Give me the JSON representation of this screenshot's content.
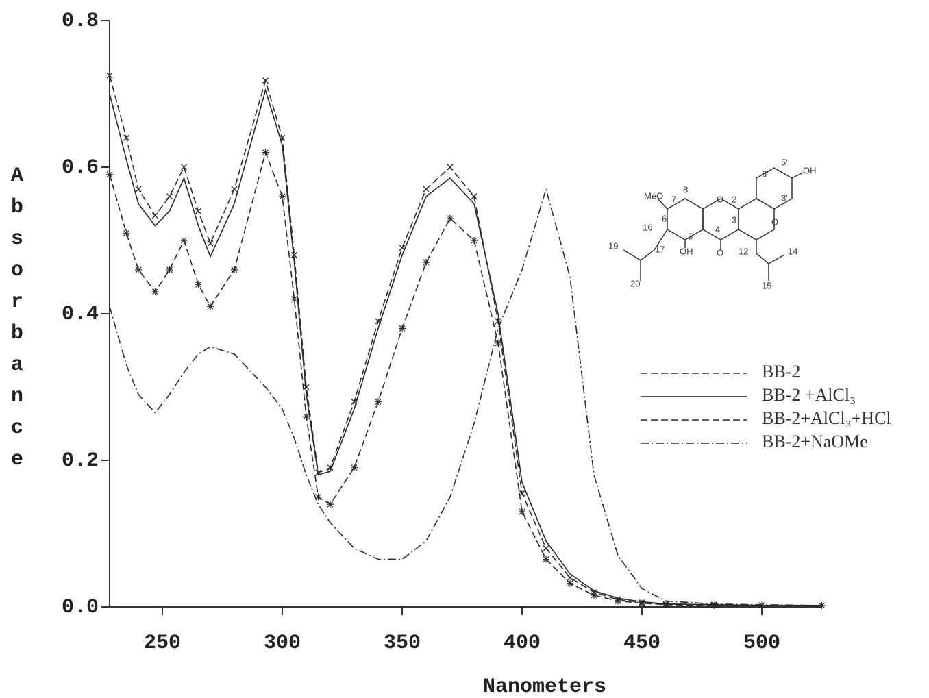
{
  "chart_data": {
    "type": "line",
    "x_label": "Nanometers",
    "y_label": "Absorbance",
    "x": [
      228,
      235,
      240,
      247,
      253,
      259,
      265,
      270,
      280,
      293,
      300,
      305,
      310,
      315,
      320,
      330,
      340,
      350,
      360,
      370,
      380,
      390,
      400,
      410,
      420,
      430,
      440,
      450,
      460,
      480,
      500,
      525
    ],
    "series": [
      {
        "name": "BB-2",
        "color": "#2a2a2a",
        "line_style": "dashed",
        "marker": "x",
        "values": [
          0.725,
          0.64,
          0.57,
          0.534,
          0.56,
          0.6,
          0.54,
          0.496,
          0.57,
          0.718,
          0.64,
          0.48,
          0.3,
          0.183,
          0.19,
          0.28,
          0.39,
          0.49,
          0.57,
          0.6,
          0.56,
          0.39,
          0.155,
          0.08,
          0.04,
          0.02,
          0.01,
          0.006,
          0.004,
          0.003,
          0.002,
          0.002
        ]
      },
      {
        "name": "BB-2 +AlCl₃",
        "color": "#2a2a2a",
        "line_style": "solid",
        "marker": "none",
        "values": [
          0.7,
          0.61,
          0.55,
          0.52,
          0.54,
          0.585,
          0.52,
          0.478,
          0.55,
          0.705,
          0.63,
          0.47,
          0.29,
          0.18,
          0.185,
          0.27,
          0.38,
          0.48,
          0.56,
          0.585,
          0.55,
          0.4,
          0.17,
          0.09,
          0.045,
          0.022,
          0.012,
          0.007,
          0.004,
          0.003,
          0.002,
          0.002
        ]
      },
      {
        "name": "BB-2+AlCl₃+HCl",
        "color": "#2a2a2a",
        "line_style": "dashed",
        "marker": "star",
        "values": [
          0.59,
          0.51,
          0.46,
          0.43,
          0.46,
          0.5,
          0.44,
          0.41,
          0.46,
          0.62,
          0.56,
          0.42,
          0.26,
          0.15,
          0.14,
          0.19,
          0.28,
          0.38,
          0.47,
          0.53,
          0.5,
          0.36,
          0.13,
          0.065,
          0.032,
          0.016,
          0.008,
          0.005,
          0.003,
          0.002,
          0.002,
          0.002
        ]
      },
      {
        "name": "BB-2+NaOMe",
        "color": "#2a2a2a",
        "line_style": "dashdot",
        "marker": "none",
        "values": [
          0.41,
          0.33,
          0.29,
          0.265,
          0.29,
          0.32,
          0.345,
          0.355,
          0.345,
          0.3,
          0.27,
          0.23,
          0.18,
          0.14,
          0.115,
          0.08,
          0.065,
          0.065,
          0.09,
          0.15,
          0.25,
          0.38,
          0.46,
          0.57,
          0.45,
          0.18,
          0.07,
          0.025,
          0.008,
          0.004,
          0.003,
          0.002
        ]
      }
    ],
    "xlim": [
      228,
      525
    ],
    "ylim": [
      0,
      0.8
    ],
    "xticks": [
      250,
      300,
      350,
      400,
      450,
      500
    ],
    "yticks": [
      {
        "value": 0,
        "label": "0.0"
      },
      0.2,
      0.4,
      0.6,
      0.8
    ],
    "grid": false,
    "legend": "right",
    "structure_labels": [
      "MeO",
      "7",
      "8",
      "6",
      "16",
      "5",
      "OH",
      "4",
      "O",
      "O",
      "2",
      "3",
      "12",
      "14",
      "15",
      "17",
      "19",
      "20",
      "6'",
      "5'",
      "OH",
      "3'",
      "O"
    ]
  }
}
